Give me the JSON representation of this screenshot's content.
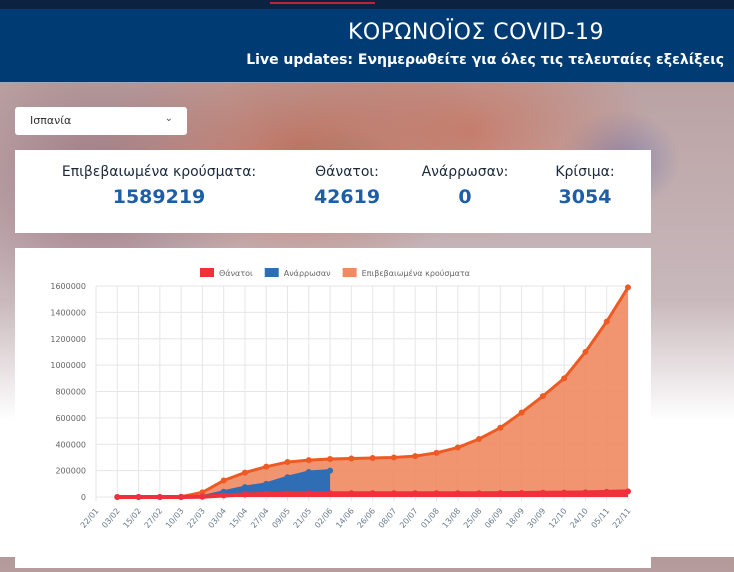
{
  "header": {
    "title": "ΚΟΡΩΝΟΪΟΣ COVID-19",
    "subtitle": "Live updates: Ενημερωθείτε για όλες τις τελευταίες εξελίξεις"
  },
  "country_select": {
    "value": "Ισπανία",
    "icon": "chevron-down-icon"
  },
  "stats": [
    {
      "label": "Επιβεβαιωμένα κρούσματα:",
      "value": "1589219"
    },
    {
      "label": "Θάνατοι:",
      "value": "42619"
    },
    {
      "label": "Ανάρρωσαν:",
      "value": "0"
    },
    {
      "label": "Κρίσιμα:",
      "value": "3054"
    }
  ],
  "colors": {
    "banner": "#003c73",
    "deaths": "#f0313c",
    "recovered": "#2f6db5",
    "confirmed": "#ef8a62",
    "confirmed_line": "#ee5a24",
    "value_text": "#1c5fa8"
  },
  "chart_data": {
    "type": "area",
    "legend_position": "top",
    "grid": true,
    "ylim": [
      0,
      1600000
    ],
    "yticks": [
      0,
      200000,
      400000,
      600000,
      800000,
      1000000,
      1200000,
      1400000,
      1600000
    ],
    "categories": [
      "22/01",
      "03/02",
      "15/02",
      "27/02",
      "10/03",
      "22/03",
      "03/04",
      "15/04",
      "27/04",
      "09/05",
      "21/05",
      "02/06",
      "14/06",
      "26/06",
      "08/07",
      "20/07",
      "01/08",
      "13/08",
      "25/08",
      "06/09",
      "18/09",
      "30/09",
      "12/10",
      "24/10",
      "05/11",
      "22/11"
    ],
    "series": [
      {
        "name": "Θάνατοι",
        "values": [
          null,
          0,
          0,
          0,
          200,
          1800,
          11000,
          19000,
          23500,
          26500,
          28000,
          28000,
          28300,
          28300,
          28400,
          28400,
          28500,
          28600,
          28900,
          29500,
          30500,
          32000,
          33500,
          35000,
          38500,
          42619
        ]
      },
      {
        "name": "Ανάρρωσαν",
        "values": [
          null,
          null,
          0,
          0,
          200,
          3000,
          40000,
          75000,
          100000,
          150000,
          190000,
          200000,
          null,
          null,
          null,
          null,
          null,
          null,
          null,
          null,
          null,
          null,
          null,
          null,
          null,
          null
        ]
      },
      {
        "name": "Επιβεβαιωμένα κρούσματα",
        "values": [
          null,
          0,
          0,
          0,
          2000,
          35000,
          125000,
          185000,
          230000,
          265000,
          280000,
          288000,
          292000,
          296000,
          300000,
          310000,
          335000,
          375000,
          440000,
          525000,
          640000,
          765000,
          900000,
          1100000,
          1330000,
          1589219
        ]
      }
    ]
  }
}
